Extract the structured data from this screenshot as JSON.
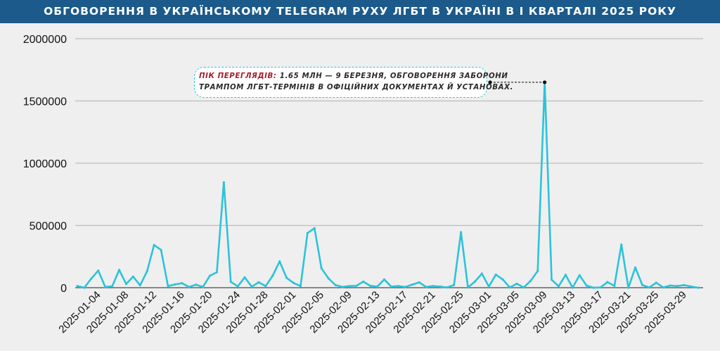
{
  "header": {
    "title": "ОБГОВОРЕННЯ В УКРАЇНСЬКОМУ TELEGRAM РУХУ ЛГБТ В УКРАЇНІ В І КВАРТАЛІ 2025 РОКУ"
  },
  "annotation": {
    "highlight": "ПІК ПЕРЕГЛЯДІВ:",
    "line1": " 1.65 МЛН — 9 БЕРЕЗНЯ, ОБГОВОРЕННЯ ЗАБОРОНИ",
    "line2": "ТРАМПОМ ЛГБТ-ТЕРМІНІВ В ОФІЦІЙНИХ ДОКУМЕНТАХ Й УСТАНОВАХ."
  },
  "colors": {
    "header": "#1b5a8b",
    "line": "#2cc3d9",
    "highlight": "#a51d2d"
  },
  "chart_data": {
    "type": "line",
    "title": "ОБГОВОРЕННЯ В УКРАЇНСЬКОМУ TELEGRAM РУХУ ЛГБТ В УКРАЇНІ В І КВАРТАЛІ 2025 РОКУ",
    "xlabel": "",
    "ylabel": "",
    "x_start": "2025-01-01",
    "x_end": "2025-03-31",
    "ylim": [
      0,
      2000000
    ],
    "yticks": [
      "0",
      "500000",
      "1000000",
      "1500000",
      "2000000"
    ],
    "ytick_values": [
      0,
      500000,
      1000000,
      1500000,
      2000000
    ],
    "xticks": [
      "2025-01-04",
      "2025-01-08",
      "2025-01-12",
      "2025-01-16",
      "2025-01-20",
      "2025-01-24",
      "2025-01-28",
      "2025-02-01",
      "2025-02-05",
      "2025-02-09",
      "2025-02-13",
      "2025-02-17",
      "2025-02-21",
      "2025-02-25",
      "2025-03-01",
      "2025-03-05",
      "2025-03-09",
      "2025-03-13",
      "2025-03-17",
      "2025-03-21",
      "2025-03-25",
      "2025-03-29"
    ],
    "xtick_day_index": [
      3,
      7,
      11,
      15,
      19,
      23,
      27,
      31,
      35,
      39,
      43,
      47,
      51,
      55,
      59,
      63,
      67,
      71,
      75,
      79,
      83,
      87
    ],
    "grid": true,
    "series": [
      {
        "name": "views",
        "values": [
          13000,
          0,
          73000,
          137000,
          6000,
          11000,
          143000,
          30000,
          89000,
          19000,
          132000,
          343000,
          303000,
          13000,
          26000,
          36000,
          6000,
          24000,
          6000,
          96000,
          124000,
          846000,
          47000,
          11000,
          83000,
          8000,
          43000,
          13000,
          96000,
          211000,
          79000,
          38000,
          13000,
          439000,
          478000,
          156000,
          75000,
          21000,
          6000,
          13000,
          15000,
          49000,
          15000,
          9000,
          66000,
          9000,
          13000,
          6000,
          24000,
          43000,
          6000,
          13000,
          9000,
          2000,
          21000,
          446000,
          2000,
          49000,
          113000,
          9000,
          105000,
          66000,
          2000,
          32000,
          2000,
          56000,
          134000,
          1650000,
          64000,
          11000,
          103000,
          0,
          100000,
          17000,
          0,
          2000,
          45000,
          15000,
          346000,
          0,
          162000,
          21000,
          2000,
          40000,
          2000,
          17000,
          13000,
          21000,
          9000,
          0
        ]
      }
    ],
    "annotation_point": {
      "date": "2025-03-09",
      "value": 1650000
    }
  }
}
